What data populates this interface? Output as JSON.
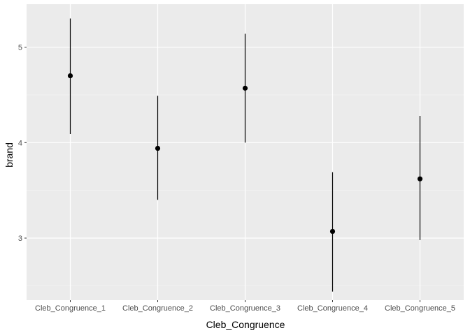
{
  "chart_data": {
    "type": "scatter",
    "subtype": "pointrange",
    "title": "",
    "xlabel": "Cleb_Congruence",
    "ylabel": "brand",
    "categories": [
      "Cleb_Congruence_1",
      "Cleb_Congruence_2",
      "Cleb_Congruence_3",
      "Cleb_Congruence_4",
      "Cleb_Congruence_5"
    ],
    "values": [
      4.7,
      3.94,
      4.57,
      3.07,
      3.62
    ],
    "lower": [
      4.09,
      3.4,
      4.0,
      2.44,
      2.98
    ],
    "upper": [
      5.3,
      4.49,
      5.14,
      3.69,
      4.28
    ],
    "yticks": [
      3,
      4,
      5
    ],
    "ylim": [
      2.35,
      5.45
    ],
    "grid": true,
    "legend": "none",
    "colors": {
      "panel": "#ebebeb",
      "grid_major": "#ffffff",
      "grid_minor": "#f5f5f5",
      "mark": "#000000",
      "tick_text": "#4d4d4d",
      "tick": "#333333"
    }
  }
}
